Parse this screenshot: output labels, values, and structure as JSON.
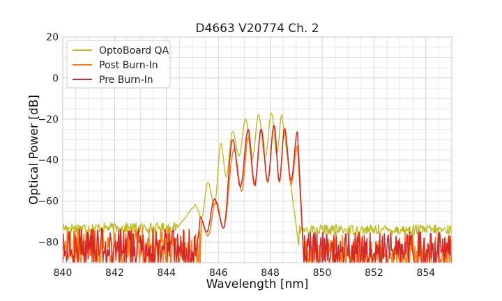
{
  "chart_data": {
    "type": "line",
    "title": "D4663 V20774 Ch. 2",
    "xlabel": "Wavelength [nm]",
    "ylabel": "Optical Power [dB]",
    "xlim": [
      840,
      855
    ],
    "ylim": [
      -90,
      20
    ],
    "xticks": [
      840,
      842,
      844,
      846,
      848,
      850,
      852,
      854
    ],
    "yticks": [
      20,
      0,
      -20,
      -40,
      -60,
      -80
    ],
    "grid": true,
    "legend_position": "top-left",
    "series": [
      {
        "name": "OptoBoard QA",
        "color": "#bcbd22",
        "noise_floor": -73,
        "noise_floor_right": -74,
        "peaks": [
          [
            845.1,
            -62
          ],
          [
            845.6,
            -51
          ],
          [
            846.1,
            -32
          ],
          [
            846.55,
            -26
          ],
          [
            847.05,
            -20
          ],
          [
            847.55,
            -18
          ],
          [
            848.05,
            -17
          ],
          [
            848.45,
            -18
          ]
        ],
        "valleys": [
          [
            845.35,
            -68
          ],
          [
            845.85,
            -62
          ],
          [
            846.3,
            -48
          ],
          [
            846.8,
            -38
          ],
          [
            847.3,
            -40
          ],
          [
            847.8,
            -39
          ],
          [
            848.25,
            -37
          ]
        ],
        "band": [
          844.4,
          849.1
        ]
      },
      {
        "name": "Post Burn-In",
        "color": "#ff7f0e",
        "noise_floor": -80,
        "noise_floor_right": -82,
        "peaks": [
          [
            845.35,
            -70
          ],
          [
            845.9,
            -60
          ],
          [
            846.6,
            -35
          ],
          [
            847.15,
            -29
          ],
          [
            847.65,
            -25
          ],
          [
            848.15,
            -23
          ],
          [
            848.55,
            -24
          ],
          [
            849.05,
            -33
          ]
        ],
        "valleys": [
          [
            845.6,
            -77
          ],
          [
            846.2,
            -73
          ],
          [
            846.9,
            -55
          ],
          [
            847.4,
            -53
          ],
          [
            847.9,
            -51
          ],
          [
            848.35,
            -51
          ],
          [
            848.8,
            -52
          ]
        ],
        "band": [
          845.3,
          849.3
        ]
      },
      {
        "name": "Pre Burn-In",
        "color": "#d62728",
        "noise_floor": -80,
        "noise_floor_right": -82,
        "peaks": [
          [
            845.3,
            -68
          ],
          [
            845.85,
            -59
          ],
          [
            846.55,
            -30
          ],
          [
            847.15,
            -25
          ],
          [
            847.65,
            -25
          ],
          [
            848.15,
            -23
          ],
          [
            848.55,
            -25
          ],
          [
            849.05,
            -26
          ]
        ],
        "valleys": [
          [
            845.55,
            -75
          ],
          [
            846.2,
            -73
          ],
          [
            846.85,
            -53
          ],
          [
            847.4,
            -52
          ],
          [
            847.9,
            -50
          ],
          [
            848.35,
            -50
          ],
          [
            848.8,
            -50
          ]
        ],
        "band": [
          845.2,
          849.3
        ]
      }
    ]
  }
}
